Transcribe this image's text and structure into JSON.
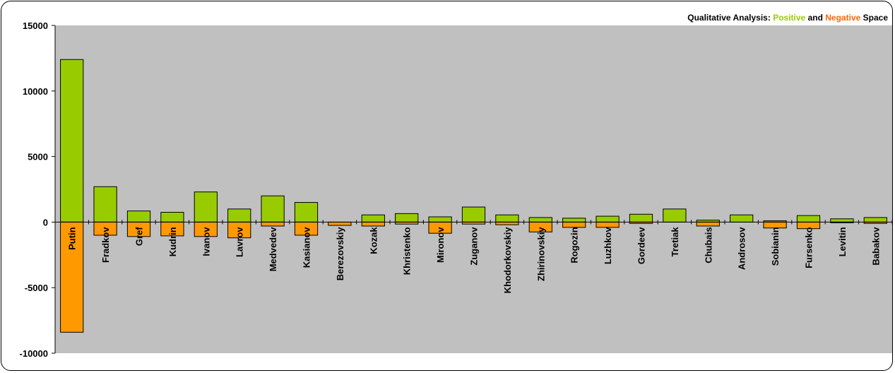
{
  "chart_data": {
    "type": "bar",
    "title": {
      "prefix": "Qualitative Analysis:",
      "positive": "Positive",
      "and": "and",
      "negative": "Negative",
      "suffix": "Space"
    },
    "categories": [
      "Putin",
      "Fradkov",
      "Gref",
      "Kudrin",
      "Ivanov",
      "Lavrov",
      "Medvedev",
      "Kasianov",
      "Berezovskiy",
      "Kozak",
      "Khristenko",
      "Mironov",
      "Zuganov",
      "Khodorkovskiy",
      "Zhirinovskiy",
      "Rogozin",
      "Luzhkov",
      "Gordeev",
      "Tretiak",
      "Chubais",
      "Androsov",
      "Sobianin",
      "Fursenko",
      "Levitin",
      "Babakov"
    ],
    "series": [
      {
        "name": "Positive",
        "color": "#99cc00",
        "values": [
          12400,
          2700,
          850,
          750,
          2300,
          1000,
          2000,
          1500,
          0,
          550,
          650,
          400,
          1150,
          550,
          350,
          300,
          450,
          600,
          1000,
          150,
          550,
          100,
          500,
          250,
          350
        ]
      },
      {
        "name": "Negative",
        "color": "#ff9900",
        "values": [
          -8400,
          -1000,
          -1100,
          -1050,
          -1100,
          -1200,
          -300,
          -1000,
          -250,
          -300,
          -150,
          -850,
          -150,
          -200,
          -750,
          -400,
          -400,
          -100,
          0,
          -300,
          0,
          -450,
          -500,
          -50,
          -100
        ]
      }
    ],
    "yticks": [
      "15000",
      "10000",
      "5000",
      "0",
      "-5000",
      "-10000"
    ],
    "ylim": [
      -10000,
      15000
    ],
    "plot_background": "#c0c0c0",
    "grid": false
  }
}
